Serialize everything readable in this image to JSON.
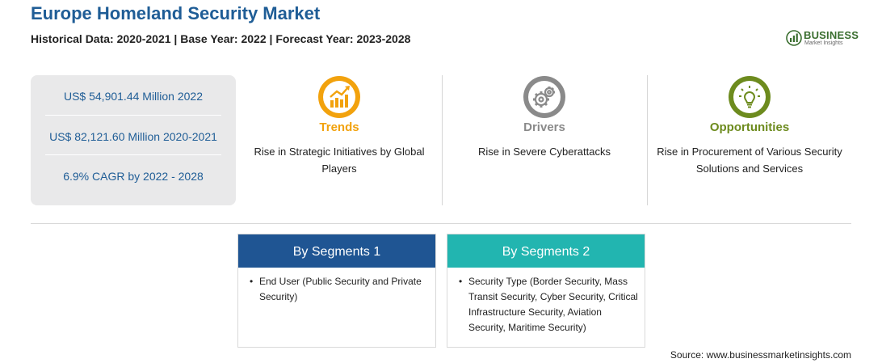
{
  "header": {
    "title": "Europe Homeland Security Market",
    "subtitle": "Historical Data: 2020-2021 | Base Year: 2022 | Forecast Year: 2023-2028"
  },
  "logo": {
    "word": "BUSINESS",
    "sub": "Market Insights"
  },
  "stats": [
    "US$ 54,901.44 Million 2022",
    "US$ 82,121.60 Million 2020-2021",
    "6.9% CAGR by 2022 - 2028"
  ],
  "cards": [
    {
      "heading": "Trends",
      "text": "Rise in Strategic Initiatives by Global Players",
      "color": "#f2a20d",
      "icon": "chart-up-icon"
    },
    {
      "heading": "Drivers",
      "text": "Rise in Severe Cyberattacks",
      "color": "#8a8a8a",
      "icon": "gears-icon"
    },
    {
      "heading": "Opportunities",
      "text": "Rise in Procurement of Various Security Solutions and Services",
      "color": "#6d8b1e",
      "icon": "lightbulb-icon"
    }
  ],
  "segments": [
    {
      "title": "By Segments 1",
      "color": "#1f5593",
      "items": [
        "End User (Public Security and Private Security)"
      ]
    },
    {
      "title": "By Segments 2",
      "color": "#22b5b0",
      "items": [
        "Security Type (Border Security, Mass Transit Security, Cyber Security, Critical Infrastructure Security, Aviation Security, Maritime Security)"
      ]
    }
  ],
  "source": "Source: www.businessmarketinsights.com"
}
